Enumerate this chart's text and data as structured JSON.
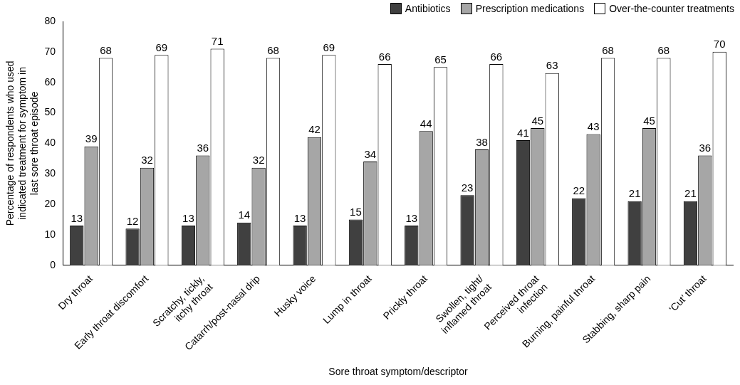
{
  "chart_data": {
    "type": "bar",
    "xlabel": "Sore throat symptom/descriptor",
    "ylabel": "Percentage of respondents who used\nindicated treatment for symptom in\nlast sore throat episode",
    "categories": [
      "Dry throat",
      "Early throat discomfort",
      "Scratchy, tickly,\nitchy throat",
      "Catarrh/post-nasal drip",
      "Husky voice",
      "Lump in throat",
      "Prickly throat",
      "Swollen, tight/\ninflamed throat",
      "Perceived throat\ninfection",
      "Burning, painful throat",
      "Stabbing, sharp pain",
      "‘Cut’ throat"
    ],
    "series": [
      {
        "name": "Antibiotics",
        "color": "#404040",
        "values": [
          13,
          12,
          13,
          14,
          13,
          15,
          13,
          23,
          41,
          22,
          21,
          21
        ]
      },
      {
        "name": "Prescription medications",
        "color": "#a6a6a6",
        "values": [
          39,
          32,
          36,
          32,
          42,
          34,
          44,
          38,
          45,
          43,
          45,
          36
        ]
      },
      {
        "name": "Over-the-counter treatments",
        "color": "#ffffff",
        "values": [
          68,
          69,
          71,
          68,
          69,
          66,
          65,
          66,
          63,
          68,
          68,
          70
        ]
      }
    ],
    "ylim": [
      0,
      80
    ],
    "yticks": [
      0,
      10,
      20,
      30,
      40,
      50,
      60,
      70,
      80
    ],
    "grid": false,
    "legend": "top right",
    "data_labels": true
  }
}
